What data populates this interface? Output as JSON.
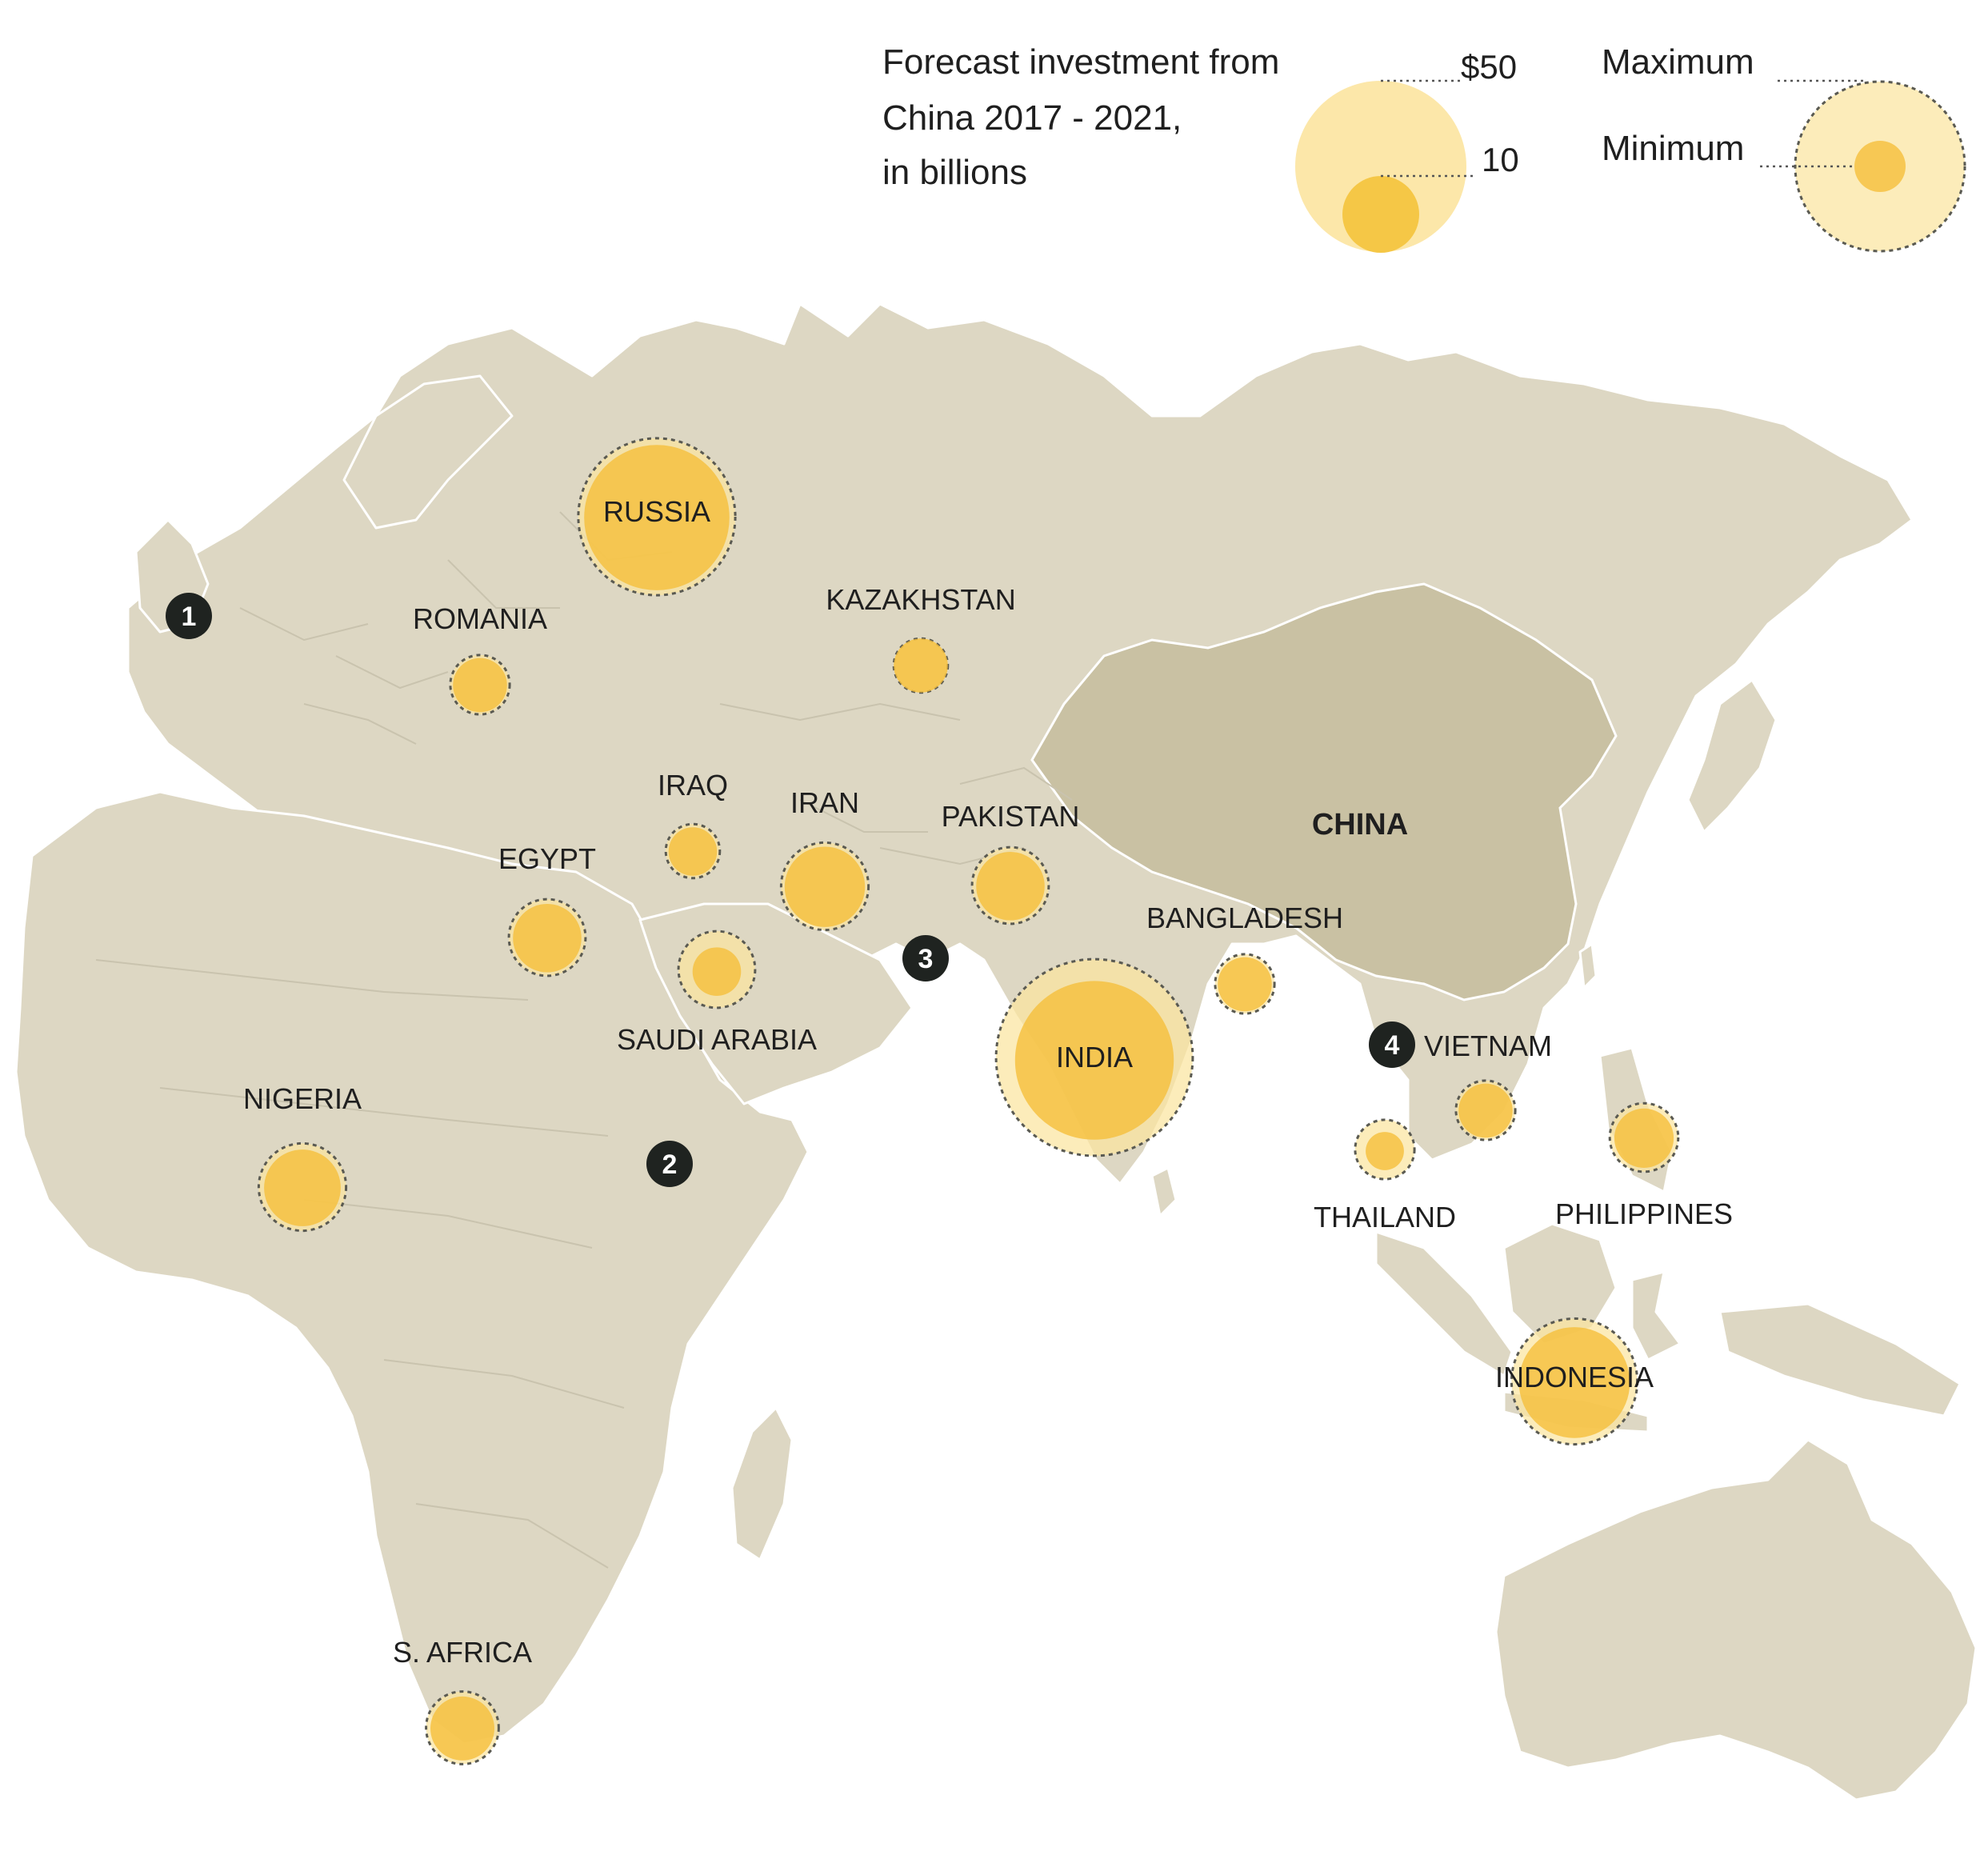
{
  "legend": {
    "title_lines": [
      "Forecast investment from",
      "China 2017 - 2021,",
      "in billions"
    ],
    "size_labels": [
      "$50",
      "10"
    ],
    "max_label": "Maximum",
    "min_label": "Minimum"
  },
  "countries": [
    {
      "name": "RUSSIA",
      "max": 42,
      "min": 36
    },
    {
      "name": "ROMANIA",
      "max": 6,
      "min": 5
    },
    {
      "name": "KAZAKHSTAN",
      "max": 5,
      "min": 5
    },
    {
      "name": "IRAQ",
      "max": 5,
      "min": 4
    },
    {
      "name": "IRAN",
      "max": 13,
      "min": 11
    },
    {
      "name": "PAKISTAN",
      "max": 10,
      "min": 8
    },
    {
      "name": "EGYPT",
      "max": 10,
      "min": 8
    },
    {
      "name": "SAUDI ARABIA",
      "max": 10,
      "min": 4
    },
    {
      "name": "BANGLADESH",
      "max": 6,
      "min": 5
    },
    {
      "name": "INDIA",
      "max": 66,
      "min": 43
    },
    {
      "name": "VIETNAM",
      "max": 6,
      "min": 5
    },
    {
      "name": "THAILAND",
      "max": 6,
      "min": 2.5
    },
    {
      "name": "PHILIPPINES",
      "max": 8,
      "min": 6
    },
    {
      "name": "NIGERIA",
      "max": 13,
      "min": 10
    },
    {
      "name": "INDONESIA",
      "max": 27,
      "min": 21
    },
    {
      "name": "S. AFRICA",
      "max": 9,
      "min": 7
    }
  ],
  "china_label": "CHINA",
  "markers": [
    "1",
    "2",
    "3",
    "4"
  ],
  "colors": {
    "land": "#ddd7c3",
    "china": "#c9c1a3",
    "min_fill": "#f5bf3d",
    "max_fill": "#fbe5a0"
  }
}
